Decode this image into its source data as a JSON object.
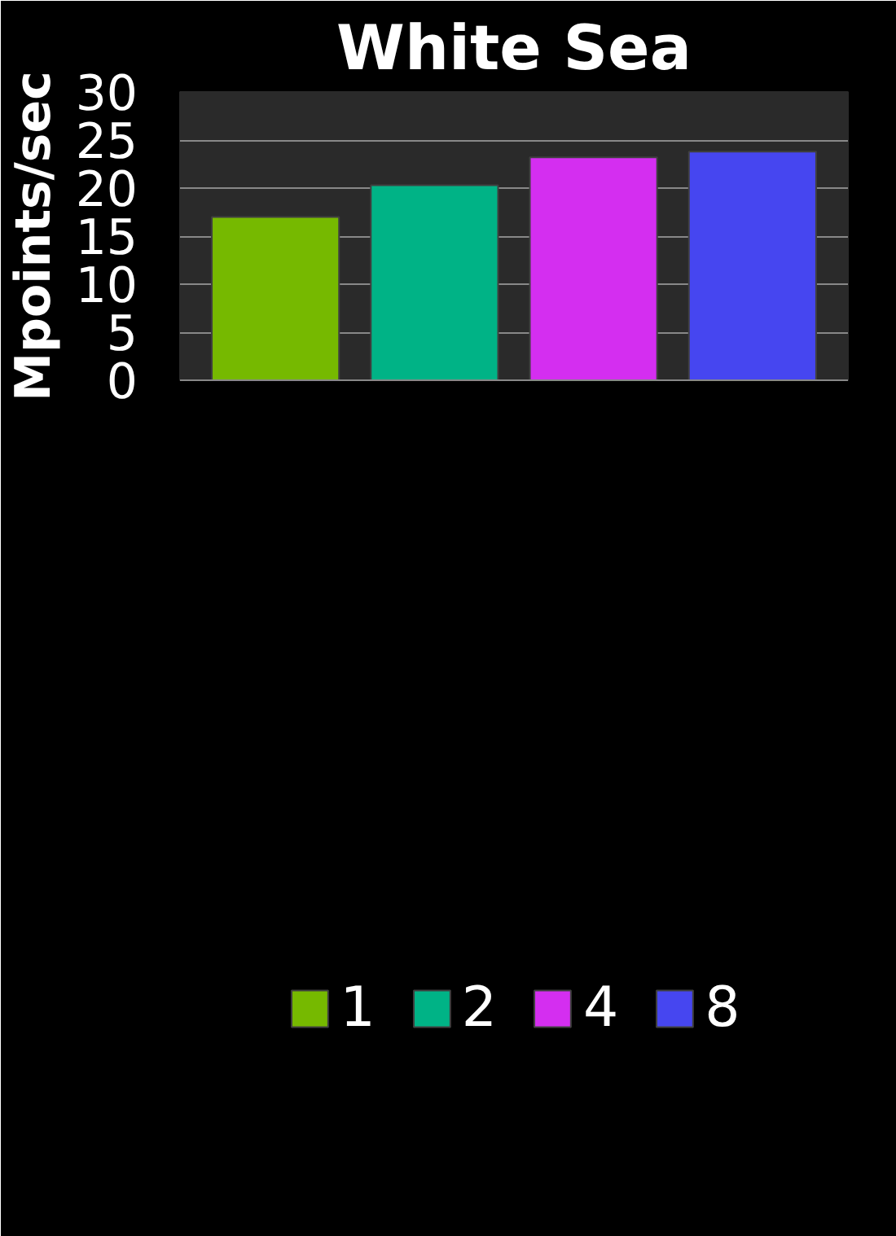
{
  "chart_data": {
    "type": "bar",
    "title": "White Sea",
    "ylabel": "Mpoints/sec",
    "categories": [
      null,
      null,
      null,
      null
    ],
    "series": [
      {
        "name": "1",
        "color": "#76b900",
        "values": [
          17.0,
          null,
          null,
          null
        ]
      },
      {
        "name": "2",
        "color": "#00b386",
        "values": [
          null,
          20.3,
          null,
          null
        ]
      },
      {
        "name": "4",
        "color": "#d42ef0",
        "values": [
          null,
          null,
          23.2,
          null
        ]
      },
      {
        "name": "8",
        "color": "#4646f0",
        "values": [
          null,
          null,
          null,
          23.8
        ]
      }
    ],
    "ylim": [
      0,
      30
    ],
    "yticks": [
      0,
      5,
      10,
      15,
      20,
      25,
      30
    ],
    "grid": "y",
    "legend": "bottom",
    "tick_labels": "y"
  }
}
